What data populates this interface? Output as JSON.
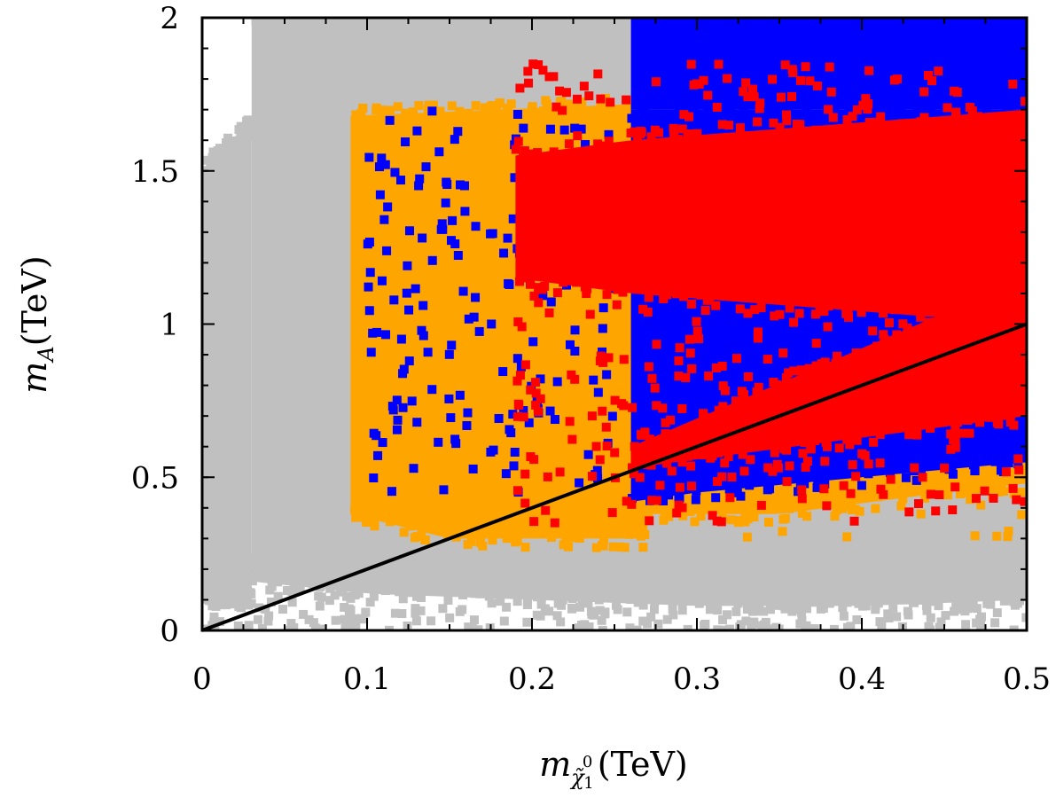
{
  "chart_data": {
    "type": "scatter",
    "title": "",
    "xlabel": {
      "symbol": "m",
      "subscript": "χ̃",
      "sub_superscript": "0",
      "sub_subscript": "1",
      "unit": "(TeV)"
    },
    "ylabel": {
      "symbol": "m",
      "subscript": "A",
      "unit": "(TeV)"
    },
    "xlim": [
      0,
      0.5
    ],
    "ylim": [
      0,
      2
    ],
    "xticks": [
      0,
      0.1,
      0.2,
      0.3,
      0.4,
      0.5
    ],
    "xtick_labels": [
      "0",
      "0.1",
      "0.2",
      "0.3",
      "0.4",
      "0.5"
    ],
    "yticks": [
      0,
      0.5,
      1,
      1.5,
      2
    ],
    "ytick_labels": [
      "0",
      "0.5",
      "1",
      "1.5",
      "2"
    ],
    "grid": false,
    "legend": "none",
    "colors": {
      "gray": "#c0c0c0",
      "orange": "#ffa500",
      "blue": "#0000ff",
      "red": "#ff0000",
      "line": "#000000"
    },
    "series": [
      {
        "name": "gray",
        "color": "#c0c0c0",
        "regions": [
          {
            "x_range": [
              0.03,
              0.5
            ],
            "lower": [
              [
                0.03,
                0.16
              ],
              [
                0.1,
                0.12
              ],
              [
                0.2,
                0.1
              ],
              [
                0.3,
                0.08
              ],
              [
                0.4,
                0.08
              ],
              [
                0.5,
                0.1
              ]
            ],
            "upper": [
              [
                0.03,
                2
              ],
              [
                0.5,
                2
              ]
            ]
          },
          {
            "x_range": [
              0.0,
              0.03
            ],
            "lower": [
              [
                0.0,
                0.12
              ],
              [
                0.03,
                0.1
              ]
            ],
            "upper": [
              [
                0.0,
                1.5
              ],
              [
                0.03,
                1.65
              ]
            ]
          }
        ],
        "scatter_count": 500,
        "scatter_x_range": [
          0.0,
          0.5
        ],
        "scatter_y_range": [
          0.0,
          0.25
        ]
      },
      {
        "name": "orange",
        "color": "#ffa500",
        "regions": [
          {
            "x_range": [
              0.09,
              0.27
            ],
            "lower": [
              [
                0.09,
                0.38
              ],
              [
                0.15,
                0.3
              ],
              [
                0.2,
                0.3
              ],
              [
                0.27,
                0.3
              ]
            ],
            "upper": [
              [
                0.09,
                1.68
              ],
              [
                0.27,
                1.72
              ]
            ]
          },
          {
            "x_range": [
              0.27,
              0.5
            ],
            "lower": [
              [
                0.27,
                0.38
              ],
              [
                0.35,
                0.38
              ],
              [
                0.45,
                0.45
              ],
              [
                0.5,
                0.48
              ]
            ],
            "upper": [
              [
                0.27,
                0.6
              ],
              [
                0.5,
                0.7
              ]
            ]
          }
        ],
        "scatter_count": 250,
        "scatter_x_range": [
          0.09,
          0.5
        ],
        "scatter_y_range": [
          0.3,
          1.72
        ]
      },
      {
        "name": "blue",
        "color": "#0000ff",
        "regions": [
          {
            "x_range": [
              0.26,
              0.5
            ],
            "lower": [
              [
                0.26,
                1.7
              ],
              [
                0.5,
                1.7
              ]
            ],
            "upper": [
              [
                0.26,
                2
              ],
              [
                0.5,
                2
              ]
            ]
          },
          {
            "x_range": [
              0.26,
              0.5
            ],
            "lower": [
              [
                0.26,
                0.42
              ],
              [
                0.3,
                0.45
              ],
              [
                0.4,
                0.5
              ],
              [
                0.5,
                0.55
              ]
            ],
            "upper": [
              [
                0.26,
                1.7
              ],
              [
                0.5,
                1.7
              ]
            ]
          }
        ],
        "scatter_count": 180,
        "scatter_x_range": [
          0.1,
          0.25
        ],
        "scatter_y_range": [
          0.45,
          1.7
        ]
      },
      {
        "name": "red",
        "color": "#ff0000",
        "regions": [
          {
            "x_range": [
              0.19,
              0.5
            ],
            "lower": [
              [
                0.19,
                1.15
              ],
              [
                0.26,
                1.1
              ],
              [
                0.5,
                1.0
              ]
            ],
            "upper": [
              [
                0.19,
                1.55
              ],
              [
                0.26,
                1.6
              ],
              [
                0.5,
                1.7
              ]
            ]
          },
          {
            "x_range": [
              0.26,
              0.5
            ],
            "lower": [
              [
                0.26,
                0.53
              ],
              [
                0.5,
                0.7
              ]
            ],
            "upper": [
              [
                0.26,
                0.6
              ],
              [
                0.5,
                1.15
              ]
            ]
          }
        ],
        "scatter_count": 500,
        "scatter_x_range": [
          0.19,
          0.5
        ],
        "scatter_y_range": [
          0.35,
          1.85
        ]
      }
    ],
    "line": {
      "name": "m_A = 2 m_chi",
      "x": [
        0,
        0.5
      ],
      "y": [
        0,
        1.0
      ],
      "color": "#000000"
    }
  }
}
